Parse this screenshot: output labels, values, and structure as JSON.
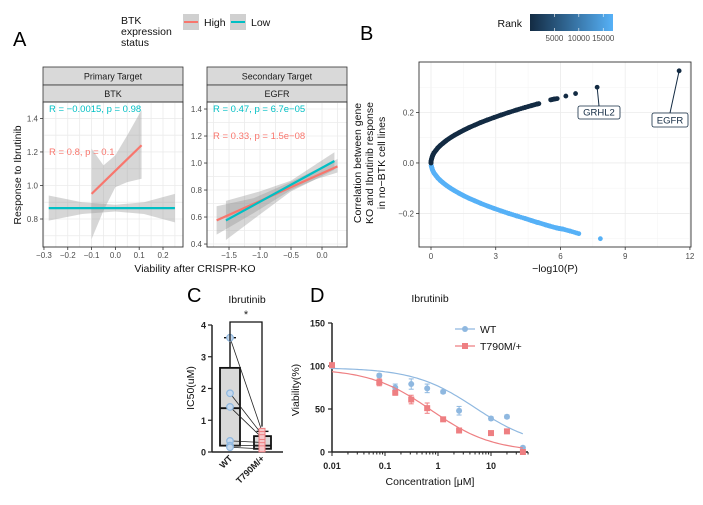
{
  "panel_letters": {
    "a": "A",
    "b": "B",
    "c": "C",
    "d": "D"
  },
  "colors": {
    "high": "#F8766D",
    "low": "#00BFC4",
    "rank_low": "#132B43",
    "rank_high": "#56B1F7",
    "wt": "#8FB8E0",
    "t790m": "#EE7F82",
    "band": "#999999"
  },
  "chart_data": [
    {
      "id": "A",
      "type": "line",
      "legend": {
        "title": "BTK expression status",
        "entries": [
          "High",
          "Low"
        ],
        "placement": "top"
      },
      "xlabel": "Viability after CRISPR-KO",
      "ylabel": "Response to Ibrutinib",
      "grid": true,
      "facets": [
        {
          "strip_top": "Primary Target",
          "strip_bottom": "BTK",
          "xlim": [
            -0.304,
            0.284
          ],
          "ylim": [
            0.633,
            1.498
          ],
          "xticks": [
            -0.3,
            -0.2,
            -0.1,
            0.0,
            0.1,
            0.2
          ],
          "xtick_labels": [
            "−0.3",
            "−0.2",
            "−0.1",
            "0.0",
            "0.1",
            "0.2"
          ],
          "yticks": [
            0.8,
            1.0,
            1.2,
            1.4
          ],
          "ytick_labels": [
            "0.8",
            "1.0",
            "1.2",
            "1.4"
          ],
          "series": [
            {
              "name": "High",
              "line": [
                [
                  -0.1,
                  0.95
                ],
                [
                  0.11,
                  1.24
                ]
              ],
              "ci": [
                [
                  -0.1,
                  0.68,
                  1.22
                ],
                [
                  -0.05,
                  0.85,
                  1.12
                ],
                [
                  0.0,
                  0.99,
                  1.18
                ],
                [
                  0.05,
                  1.02,
                  1.3
                ],
                [
                  0.11,
                  1.04,
                  1.45
                ]
              ],
              "annotation": "R = 0.8, p = 0.1"
            },
            {
              "name": "Low",
              "line": [
                [
                  -0.28,
                  0.865
                ],
                [
                  0.25,
                  0.865
                ]
              ],
              "ci": [
                [
                  -0.28,
                  0.79,
                  0.94
                ],
                [
                  -0.14,
                  0.83,
                  0.9
                ],
                [
                  0.0,
                  0.845,
                  0.885
                ],
                [
                  0.12,
                  0.83,
                  0.9
                ],
                [
                  0.25,
                  0.78,
                  0.95
                ]
              ],
              "annotation": "R = −0.0015, p = 0.98"
            }
          ]
        },
        {
          "strip_top": "Secondary Target",
          "strip_bottom": "EGFR",
          "xlim": [
            -1.855,
            0.403
          ],
          "ylim": [
            0.378,
            1.452
          ],
          "xticks": [
            -1.5,
            -1.0,
            -0.5,
            0.0
          ],
          "xtick_labels": [
            "−1.5",
            "−1.0",
            "−0.5",
            "0.0"
          ],
          "yticks": [
            0.4,
            0.6,
            0.8,
            1.0,
            1.2,
            1.4
          ],
          "ytick_labels": [
            "0.4",
            "0.6",
            "0.8",
            "1.0",
            "1.2",
            "1.4"
          ],
          "series": [
            {
              "name": "High",
              "line": [
                [
                  -1.7,
                  0.575
                ],
                [
                  0.25,
                  0.975
                ]
              ],
              "ci": [
                [
                  -1.7,
                  0.47,
                  0.68
                ],
                [
                  -1.1,
                  0.63,
                  0.74
                ],
                [
                  -0.5,
                  0.8,
                  0.86
                ],
                [
                  -0.1,
                  0.88,
                  0.95
                ],
                [
                  0.25,
                  0.93,
                  1.03
                ]
              ],
              "annotation": "R = 0.33, p = 1.5e−08"
            },
            {
              "name": "Low",
              "line": [
                [
                  -1.55,
                  0.575
                ],
                [
                  0.2,
                  1.015
                ]
              ],
              "ci": [
                [
                  -1.55,
                  0.43,
                  0.72
                ],
                [
                  -1.0,
                  0.62,
                  0.79
                ],
                [
                  -0.5,
                  0.79,
                  0.87
                ],
                [
                  -0.1,
                  0.88,
                  0.99
                ],
                [
                  0.2,
                  0.95,
                  1.08
                ]
              ],
              "annotation": "R = 0.47, p = 6.7e−05"
            }
          ]
        }
      ]
    },
    {
      "id": "B",
      "type": "scatter",
      "xlabel": "−log10(P)",
      "ylabel": [
        "Correlation between gene",
        "KO and Ibrutinib response",
        "in no−BTK cell lines"
      ],
      "xlim": [
        -0.556,
        12.05
      ],
      "ylim": [
        -0.333,
        0.4
      ],
      "xticks": [
        0,
        3,
        6,
        9,
        12
      ],
      "yticks": [
        -0.2,
        0.0,
        0.2
      ],
      "ytick_labels": [
        "−0.2",
        "0.0",
        "0.2"
      ],
      "grid": true,
      "colorbar": {
        "title": "Rank",
        "ticks": [
          5000,
          10000,
          15000
        ],
        "range": [
          1,
          17000
        ]
      },
      "positive_points": [
        [
          0,
          0
        ],
        [
          0.01,
          0.01
        ],
        [
          0.04,
          0.02
        ],
        [
          0.08,
          0.03
        ],
        [
          0.14,
          0.04
        ],
        [
          0.23,
          0.05
        ],
        [
          0.32,
          0.06
        ],
        [
          0.44,
          0.07
        ],
        [
          0.58,
          0.08
        ],
        [
          0.73,
          0.09
        ],
        [
          0.9,
          0.1
        ],
        [
          1.09,
          0.11
        ],
        [
          1.3,
          0.12
        ],
        [
          1.52,
          0.13
        ],
        [
          1.76,
          0.14
        ],
        [
          2.03,
          0.15
        ],
        [
          2.3,
          0.16
        ],
        [
          2.6,
          0.17
        ],
        [
          2.92,
          0.18
        ],
        [
          3.25,
          0.19
        ],
        [
          3.6,
          0.2
        ],
        [
          3.97,
          0.21
        ],
        [
          4.36,
          0.22
        ],
        [
          4.65,
          0.227
        ],
        [
          4.9,
          0.233
        ],
        [
          5.0,
          0.235
        ],
        [
          5.55,
          0.25
        ],
        [
          5.7,
          0.253
        ],
        [
          5.85,
          0.255
        ],
        [
          6.25,
          0.265
        ],
        [
          6.7,
          0.275
        ],
        [
          7.7,
          0.3
        ],
        [
          11.5,
          0.365
        ]
      ],
      "negative_points": [
        [
          0.01,
          -0.01
        ],
        [
          0.04,
          -0.02
        ],
        [
          0.08,
          -0.03
        ],
        [
          0.14,
          -0.04
        ],
        [
          0.23,
          -0.05
        ],
        [
          0.32,
          -0.06
        ],
        [
          0.44,
          -0.07
        ],
        [
          0.58,
          -0.08
        ],
        [
          0.73,
          -0.09
        ],
        [
          0.9,
          -0.1
        ],
        [
          1.09,
          -0.11
        ],
        [
          1.3,
          -0.12
        ],
        [
          1.52,
          -0.13
        ],
        [
          1.76,
          -0.14
        ],
        [
          2.03,
          -0.15
        ],
        [
          2.3,
          -0.16
        ],
        [
          2.6,
          -0.17
        ],
        [
          2.92,
          -0.18
        ],
        [
          3.25,
          -0.19
        ],
        [
          3.6,
          -0.2
        ],
        [
          3.97,
          -0.21
        ],
        [
          4.36,
          -0.22
        ],
        [
          4.65,
          -0.228
        ],
        [
          4.9,
          -0.235
        ],
        [
          5.0,
          -0.237
        ],
        [
          5.3,
          -0.245
        ],
        [
          5.5,
          -0.25
        ],
        [
          5.8,
          -0.257
        ],
        [
          5.95,
          -0.26
        ],
        [
          6.1,
          -0.262
        ],
        [
          6.45,
          -0.27
        ],
        [
          6.85,
          -0.28
        ],
        [
          7.85,
          -0.3
        ]
      ],
      "labels": [
        {
          "text": "GRHL2",
          "point": [
            7.7,
            0.3
          ]
        },
        {
          "text": "EGFR",
          "point": [
            11.5,
            0.365
          ]
        }
      ]
    },
    {
      "id": "C",
      "type": "box",
      "title": "Ibrutinib",
      "ylabel": "IC50(uM)",
      "ylim": [
        0,
        4
      ],
      "yticks": [
        0,
        1,
        2,
        3,
        4
      ],
      "categories": [
        "WT",
        "T790M/+"
      ],
      "boxes": [
        {
          "name": "WT",
          "min": 0.1,
          "q1": 0.2,
          "median": 1.38,
          "q3": 2.65,
          "max": 3.6
        },
        {
          "name": "T790M/+",
          "min": 0.08,
          "q1": 0.1,
          "median": 0.2,
          "q3": 0.5,
          "max": 0.65
        }
      ],
      "paired_points": [
        [
          3.6,
          0.65
        ],
        [
          1.85,
          0.55
        ],
        [
          1.42,
          0.45
        ],
        [
          0.35,
          0.3
        ],
        [
          0.2,
          0.2
        ],
        [
          0.15,
          0.1
        ]
      ],
      "significance": "*"
    },
    {
      "id": "D",
      "type": "line",
      "title": "Ibrutinib",
      "xlabel": "Concentration [μM]",
      "ylabel": "Viability(%)",
      "xscale": "log",
      "xlim": [
        0.01,
        50
      ],
      "ylim": [
        0,
        150
      ],
      "xticks": [
        0.01,
        0.1,
        1,
        10
      ],
      "xtick_labels": [
        "0.01",
        "0.1",
        "1",
        "10"
      ],
      "yticks": [
        0,
        50,
        100,
        150
      ],
      "legend": {
        "placement": "top-right"
      },
      "series": [
        {
          "name": "WT",
          "marker": "circle",
          "x": [
            0.01,
            0.078,
            0.156,
            0.3125,
            0.625,
            1.25,
            2.5,
            10,
            20,
            40
          ],
          "y": [
            100,
            89,
            75,
            79,
            74,
            70,
            48,
            39,
            41,
            5
          ],
          "err": [
            2,
            2,
            4,
            6,
            5,
            2,
            5,
            2,
            2,
            1
          ]
        },
        {
          "name": "T790M/+",
          "marker": "square",
          "x": [
            0.01,
            0.078,
            0.156,
            0.3125,
            0.625,
            1.25,
            2.5,
            10,
            20,
            40
          ],
          "y": [
            101,
            81,
            69,
            61,
            51,
            38,
            25,
            22,
            24,
            0
          ],
          "err": [
            2,
            4,
            3,
            5,
            6,
            2,
            2,
            2,
            2,
            1
          ]
        }
      ]
    }
  ]
}
